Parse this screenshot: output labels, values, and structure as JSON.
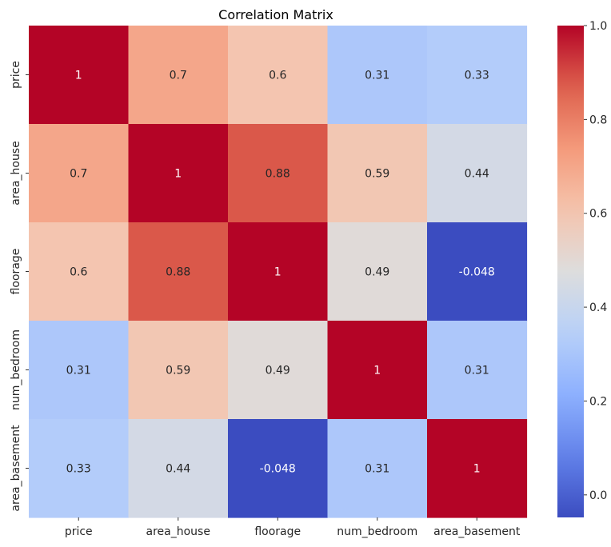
{
  "chart_data": {
    "type": "heatmap",
    "title": "Correlation Matrix",
    "x_labels": [
      "price",
      "area_house",
      "floorage",
      "num_bedroom",
      "area_basement"
    ],
    "y_labels": [
      "price",
      "area_house",
      "floorage",
      "num_bedroom",
      "area_basement"
    ],
    "values": [
      [
        1,
        0.7,
        0.6,
        0.31,
        0.33
      ],
      [
        0.7,
        1,
        0.88,
        0.59,
        0.44
      ],
      [
        0.6,
        0.88,
        1,
        0.49,
        -0.048
      ],
      [
        0.31,
        0.59,
        0.49,
        1,
        0.31
      ],
      [
        0.33,
        0.44,
        -0.048,
        0.31,
        1
      ]
    ],
    "annotations": [
      [
        "1",
        "0.7",
        "0.6",
        "0.31",
        "0.33"
      ],
      [
        "0.7",
        "1",
        "0.88",
        "0.59",
        "0.44"
      ],
      [
        "0.6",
        "0.88",
        "1",
        "0.49",
        "-0.048"
      ],
      [
        "0.31",
        "0.59",
        "0.49",
        "1",
        "0.31"
      ],
      [
        "0.33",
        "0.44",
        "-0.048",
        "0.31",
        "1"
      ]
    ],
    "colormap": "coolwarm",
    "vmin": -0.048,
    "vmax": 1,
    "colorbar_ticks": [
      0.0,
      0.2,
      0.4,
      0.6,
      0.8,
      1.0
    ],
    "colorbar_tick_labels": [
      "0.0",
      "0.2",
      "0.4",
      "0.6",
      "0.8",
      "1.0"
    ]
  }
}
